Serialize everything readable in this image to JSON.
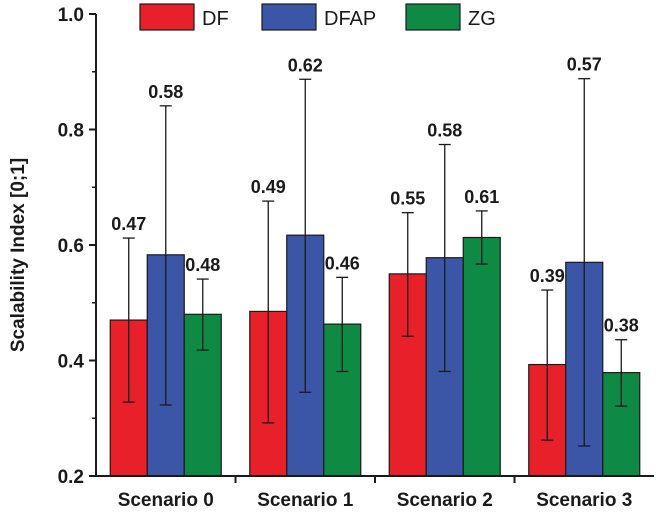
{
  "chart_data": {
    "type": "bar",
    "ylabel": "Scalability Index [0;1]",
    "xlabel": "",
    "ylim": [
      0.2,
      1.0
    ],
    "yticks": [
      "0.2",
      "0.4",
      "0.6",
      "0.8",
      "1.0"
    ],
    "categories": [
      "Scenario 0",
      "Scenario 1",
      "Scenario 2",
      "Scenario 3"
    ],
    "legend_position": "top",
    "grid": false,
    "series": [
      {
        "name": "DF",
        "color": "#e8202a",
        "values": [
          0.47,
          0.485,
          0.55,
          0.393
        ],
        "labels": [
          "0.47",
          "0.49",
          "0.55",
          "0.39"
        ],
        "error_low": [
          0.328,
          0.292,
          0.442,
          0.262
        ],
        "error_high": [
          0.612,
          0.676,
          0.656,
          0.522
        ]
      },
      {
        "name": "DFAP",
        "color": "#3b56a6",
        "values": [
          0.583,
          0.617,
          0.578,
          0.57
        ],
        "labels": [
          "0.58",
          "0.62",
          "0.58",
          "0.57"
        ],
        "error_low": [
          0.323,
          0.345,
          0.381,
          0.252
        ],
        "error_high": [
          0.841,
          0.887,
          0.774,
          0.888
        ]
      },
      {
        "name": "ZG",
        "color": "#0f8a45",
        "values": [
          0.48,
          0.463,
          0.613,
          0.379
        ],
        "labels": [
          "0.48",
          "0.46",
          "0.61",
          "0.38"
        ],
        "error_low": [
          0.418,
          0.381,
          0.567,
          0.321
        ],
        "error_high": [
          0.541,
          0.544,
          0.659,
          0.436
        ]
      }
    ]
  }
}
